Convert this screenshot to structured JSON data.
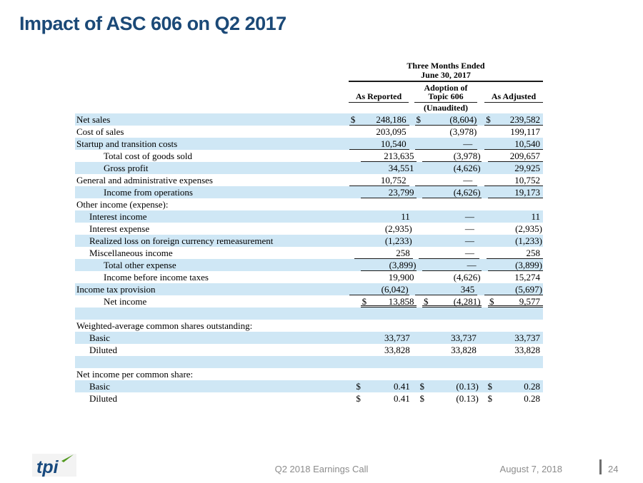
{
  "slide": {
    "title": "Impact of ASC 606 on Q2 2017"
  },
  "table": {
    "header": {
      "period_line1": "Three Months Ended",
      "period_line2": "June 30, 2017",
      "col1": "As Reported",
      "col2_line1": "Adoption of",
      "col2_line2": "Topic 606",
      "col2_line3": "(Unaudited)",
      "col3": "As Adjusted"
    },
    "rows": [
      {
        "label": "Net sales",
        "indent": 0,
        "shade": true,
        "dollar": true,
        "values": [
          "248,186",
          "(8,604)",
          "239,582"
        ],
        "underline": "single"
      },
      {
        "label": "Cost of sales",
        "indent": 0,
        "shade": false,
        "dollar": false,
        "values": [
          "203,095",
          "(3,978)",
          "199,117"
        ],
        "underline": "none"
      },
      {
        "label": "Startup and transition costs",
        "indent": 0,
        "shade": true,
        "dollar": false,
        "values": [
          "10,540",
          "—",
          "10,540"
        ],
        "underline": "single"
      },
      {
        "label": "Total cost of goods sold",
        "indent": 2,
        "shade": false,
        "dollar": false,
        "values": [
          "213,635",
          "(3,978)",
          "209,657"
        ],
        "underline": "single"
      },
      {
        "label": "Gross profit",
        "indent": 2,
        "shade": true,
        "dollar": false,
        "values": [
          "34,551",
          "(4,626)",
          "29,925"
        ],
        "underline": "none"
      },
      {
        "label": "General and administrative expenses",
        "indent": 0,
        "shade": false,
        "dollar": false,
        "values": [
          "10,752",
          "—",
          "10,752"
        ],
        "underline": "single"
      },
      {
        "label": "Income from operations",
        "indent": 2,
        "shade": true,
        "dollar": false,
        "values": [
          "23,799",
          "(4,626)",
          "19,173"
        ],
        "underline": "single"
      },
      {
        "label": "Other income (expense):",
        "indent": 0,
        "shade": false,
        "dollar": false,
        "values": [
          "",
          "",
          ""
        ],
        "underline": "none"
      },
      {
        "label": "Interest income",
        "indent": 1,
        "shade": true,
        "dollar": false,
        "values": [
          "11",
          "—",
          "11"
        ],
        "underline": "none"
      },
      {
        "label": "Interest expense",
        "indent": 1,
        "shade": false,
        "dollar": false,
        "values": [
          "(2,935)",
          "—",
          "(2,935)"
        ],
        "underline": "none"
      },
      {
        "label": "Realized loss on foreign currency remeasurement",
        "indent": 1,
        "shade": true,
        "dollar": false,
        "values": [
          "(1,233)",
          "—",
          "(1,233)"
        ],
        "underline": "none"
      },
      {
        "label": "Miscellaneous income",
        "indent": 1,
        "shade": false,
        "dollar": false,
        "values": [
          "258",
          "—",
          "258"
        ],
        "underline": "single"
      },
      {
        "label": "Total other expense",
        "indent": 2,
        "shade": true,
        "dollar": false,
        "values": [
          "(3,899)",
          "—",
          "(3,899)"
        ],
        "underline": "single"
      },
      {
        "label": "Income before income taxes",
        "indent": 2,
        "shade": false,
        "dollar": false,
        "values": [
          "19,900",
          "(4,626)",
          "15,274"
        ],
        "underline": "none"
      },
      {
        "label": "Income tax provision",
        "indent": 0,
        "shade": true,
        "dollar": false,
        "values": [
          "(6,042)",
          "345",
          "(5,697)"
        ],
        "underline": "single"
      },
      {
        "label": "Net income",
        "indent": 2,
        "shade": false,
        "dollar": true,
        "values": [
          "13,858",
          "(4,281)",
          "9,577"
        ],
        "underline": "double"
      },
      {
        "label": "",
        "indent": 0,
        "shade": true,
        "dollar": false,
        "values": [
          "",
          "",
          ""
        ],
        "underline": "none"
      },
      {
        "label": "Weighted-average common shares outstanding:",
        "indent": 0,
        "shade": false,
        "dollar": false,
        "values": [
          "",
          "",
          ""
        ],
        "underline": "none"
      },
      {
        "label": "Basic",
        "indent": 1,
        "shade": true,
        "dollar": false,
        "values": [
          "33,737",
          "33,737",
          "33,737"
        ],
        "underline": "none"
      },
      {
        "label": "Diluted",
        "indent": 1,
        "shade": false,
        "dollar": false,
        "values": [
          "33,828",
          "33,828",
          "33,828"
        ],
        "underline": "none"
      },
      {
        "label": "",
        "indent": 0,
        "shade": true,
        "dollar": false,
        "values": [
          "",
          "",
          ""
        ],
        "underline": "none"
      },
      {
        "label": "Net income per common share:",
        "indent": 0,
        "shade": false,
        "dollar": false,
        "values": [
          "",
          "",
          ""
        ],
        "underline": "none"
      },
      {
        "label": "Basic",
        "indent": 1,
        "shade": true,
        "dollar": true,
        "values": [
          "0.41",
          "(0.13)",
          "0.28"
        ],
        "underline": "none"
      },
      {
        "label": "Diluted",
        "indent": 1,
        "shade": false,
        "dollar": true,
        "values": [
          "0.41",
          "(0.13)",
          "0.28"
        ],
        "underline": "none"
      }
    ]
  },
  "footer": {
    "logo_text": "tpi",
    "center_text": "Q2 2018 Earnings Call",
    "date_text": "August 7, 2018",
    "page_number": "24"
  },
  "colors": {
    "title_blue": "#1B4977",
    "stripe_blue": "#CFE7F5",
    "footer_gray": "#8C8C8C",
    "logo_blue": "#17497E",
    "logo_green": "#52991F"
  }
}
